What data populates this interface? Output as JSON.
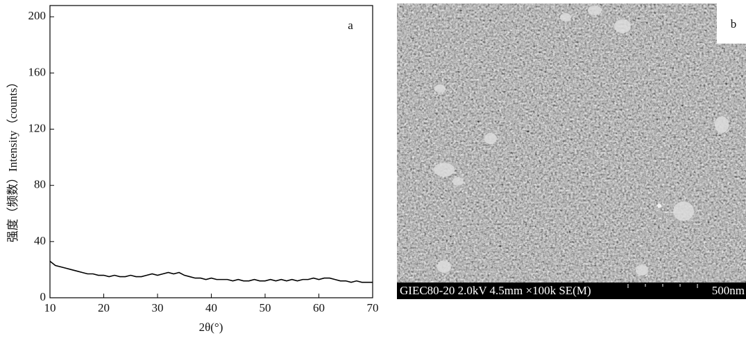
{
  "chart_data": {
    "type": "line",
    "panel_label": "a",
    "xlabel": "2θ(°)",
    "ylabel": "强度（频数）Intensity（counts）",
    "x": [
      10,
      11,
      12,
      13,
      14,
      15,
      16,
      17,
      18,
      19,
      20,
      21,
      22,
      23,
      24,
      25,
      26,
      27,
      28,
      29,
      30,
      31,
      32,
      33,
      34,
      35,
      36,
      37,
      38,
      39,
      40,
      41,
      42,
      43,
      44,
      45,
      46,
      47,
      48,
      49,
      50,
      51,
      52,
      53,
      54,
      55,
      56,
      57,
      58,
      59,
      60,
      61,
      62,
      63,
      64,
      65,
      66,
      67,
      68,
      69,
      70
    ],
    "values": [
      26,
      23,
      22,
      21,
      20,
      19,
      18,
      17,
      17,
      16,
      16,
      15,
      16,
      15,
      15,
      16,
      15,
      15,
      16,
      17,
      16,
      17,
      18,
      17,
      18,
      16,
      15,
      14,
      14,
      13,
      14,
      13,
      13,
      13,
      12,
      13,
      12,
      12,
      13,
      12,
      12,
      13,
      12,
      13,
      12,
      13,
      12,
      13,
      13,
      14,
      13,
      14,
      14,
      13,
      12,
      12,
      11,
      12,
      11,
      11,
      11
    ],
    "color": "#000000",
    "xlim": [
      10,
      70
    ],
    "xticks": [
      10,
      20,
      30,
      40,
      50,
      60,
      70
    ],
    "ylim": [
      0,
      208
    ],
    "yticks": [
      0,
      40,
      80,
      120,
      160,
      200
    ]
  },
  "image": {
    "label": "b",
    "caption": "GIEC80-20 2.0kV 4.5mm ×100k SE(M)",
    "scale": "500nm"
  }
}
